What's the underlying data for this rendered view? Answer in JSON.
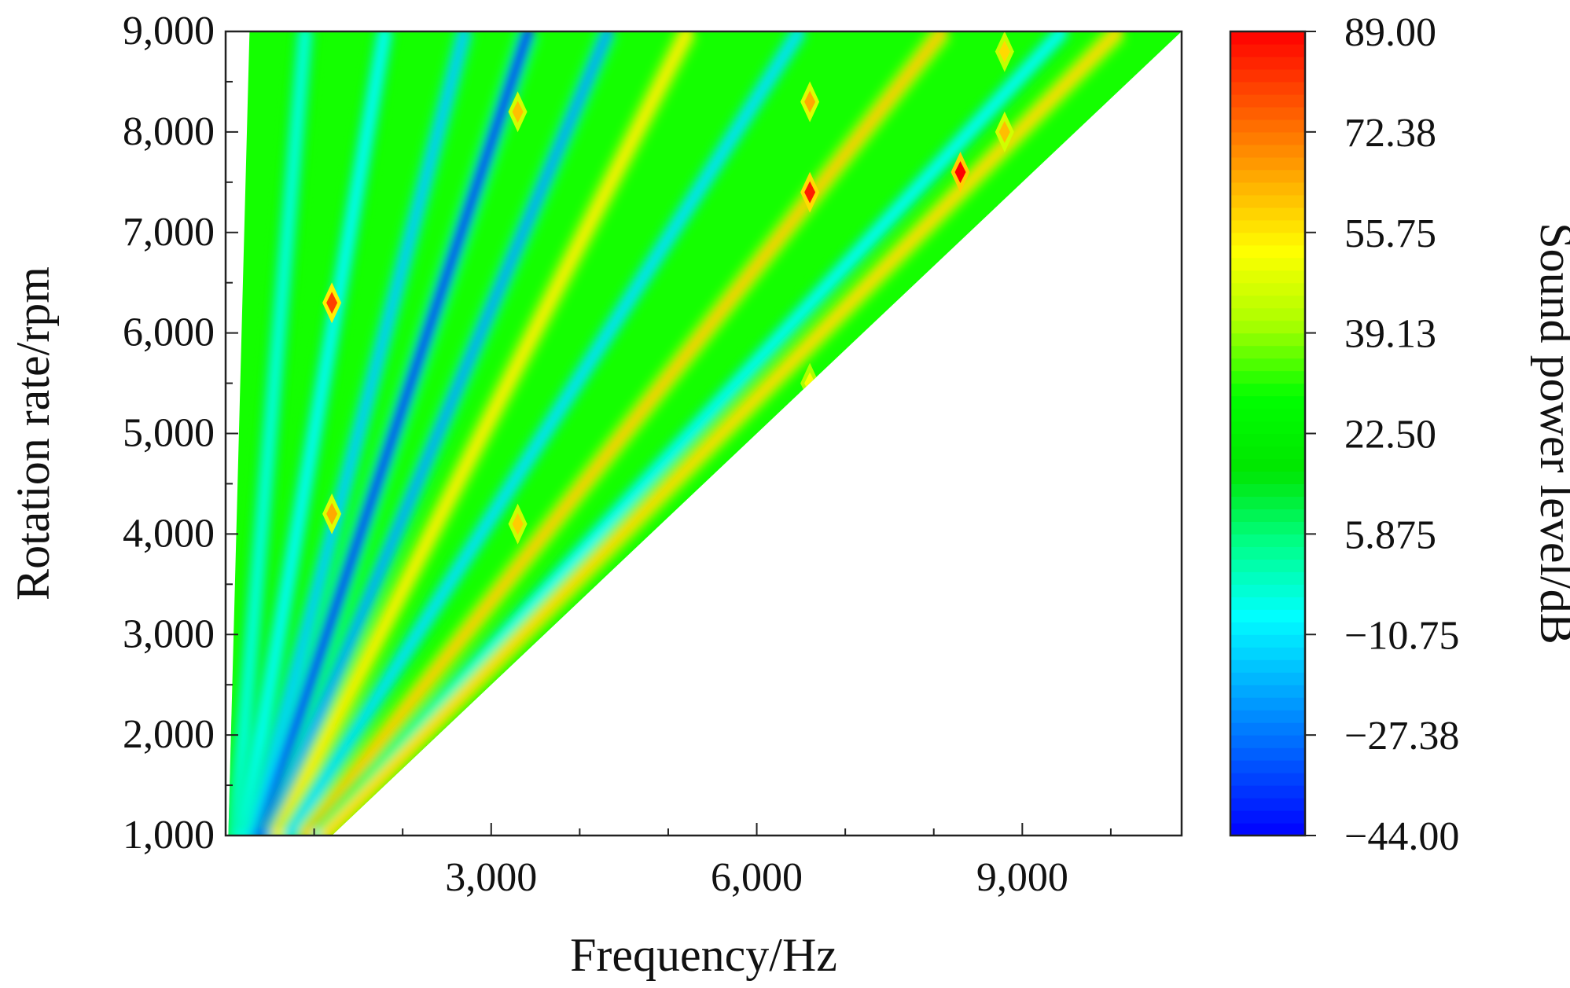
{
  "chart_data": {
    "type": "heatmap",
    "title": "",
    "xlabel": "Frequency/Hz",
    "ylabel": "Rotation rate/rpm",
    "xlim": [
      0,
      10800
    ],
    "ylim": [
      1000,
      9000
    ],
    "x_ticks": [
      3000,
      6000,
      9000
    ],
    "x_tick_labels": [
      "3,000",
      "6,000",
      "9,000"
    ],
    "y_ticks": [
      1000,
      2000,
      3000,
      4000,
      5000,
      6000,
      7000,
      8000,
      9000
    ],
    "y_tick_labels": [
      "1,000",
      "2,000",
      "3,000",
      "4,000",
      "5,000",
      "6,000",
      "7,000",
      "8,000",
      "9,000"
    ],
    "colorbar": {
      "label": "Sound power level/dB",
      "range": [
        -44.0,
        89.0
      ],
      "tick_values": [
        89.0,
        72.38,
        55.75,
        39.13,
        22.5,
        5.875,
        -10.75,
        -27.38,
        -44.0
      ],
      "tick_labels": [
        "89.00",
        "72.38",
        "55.75",
        "39.13",
        "22.50",
        "5.875",
        "−10.75",
        "−27.38",
        "−44.00"
      ],
      "colors": [
        "#0000ff",
        "#0055ff",
        "#00aaff",
        "#00ffff",
        "#00ff88",
        "#00e600",
        "#00ff00",
        "#aaff00",
        "#ffff00",
        "#ffaa00",
        "#ff5500",
        "#ff0000"
      ]
    },
    "background_level_db": 30,
    "data_region": "triangle between f = 0.6*n (left edge) and f = 1.2*n (right edge), n from 1000 to 9000 rpm",
    "order_lines": [
      {
        "order_hz_per_rpm": 0.1,
        "level_db": -5
      },
      {
        "order_hz_per_rpm": 0.2,
        "level_db": -8
      },
      {
        "order_hz_per_rpm": 0.3,
        "level_db": -15
      },
      {
        "order_hz_per_rpm": 0.38,
        "level_db": -40
      },
      {
        "order_hz_per_rpm": 0.48,
        "level_db": -20
      },
      {
        "order_hz_per_rpm": 0.58,
        "level_db": 55
      },
      {
        "order_hz_per_rpm": 0.72,
        "level_db": -12
      },
      {
        "order_hz_per_rpm": 0.9,
        "level_db": 60
      },
      {
        "order_hz_per_rpm": 1.05,
        "level_db": -8
      },
      {
        "order_hz_per_rpm": 1.12,
        "level_db": 58
      }
    ],
    "hot_spots": [
      {
        "frequency": 1200,
        "rpm": 6300,
        "level_db": 80
      },
      {
        "frequency": 1200,
        "rpm": 4200,
        "level_db": 65
      },
      {
        "frequency": 3300,
        "rpm": 8200,
        "level_db": 62
      },
      {
        "frequency": 3300,
        "rpm": 4100,
        "level_db": 60
      },
      {
        "frequency": 6600,
        "rpm": 7400,
        "level_db": 85
      },
      {
        "frequency": 6600,
        "rpm": 8300,
        "level_db": 65
      },
      {
        "frequency": 8300,
        "rpm": 7600,
        "level_db": 89
      },
      {
        "frequency": 8800,
        "rpm": 8000,
        "level_db": 62
      },
      {
        "frequency": 8800,
        "rpm": 8800,
        "level_db": 58
      },
      {
        "frequency": 6600,
        "rpm": 5500,
        "level_db": 52
      }
    ]
  }
}
